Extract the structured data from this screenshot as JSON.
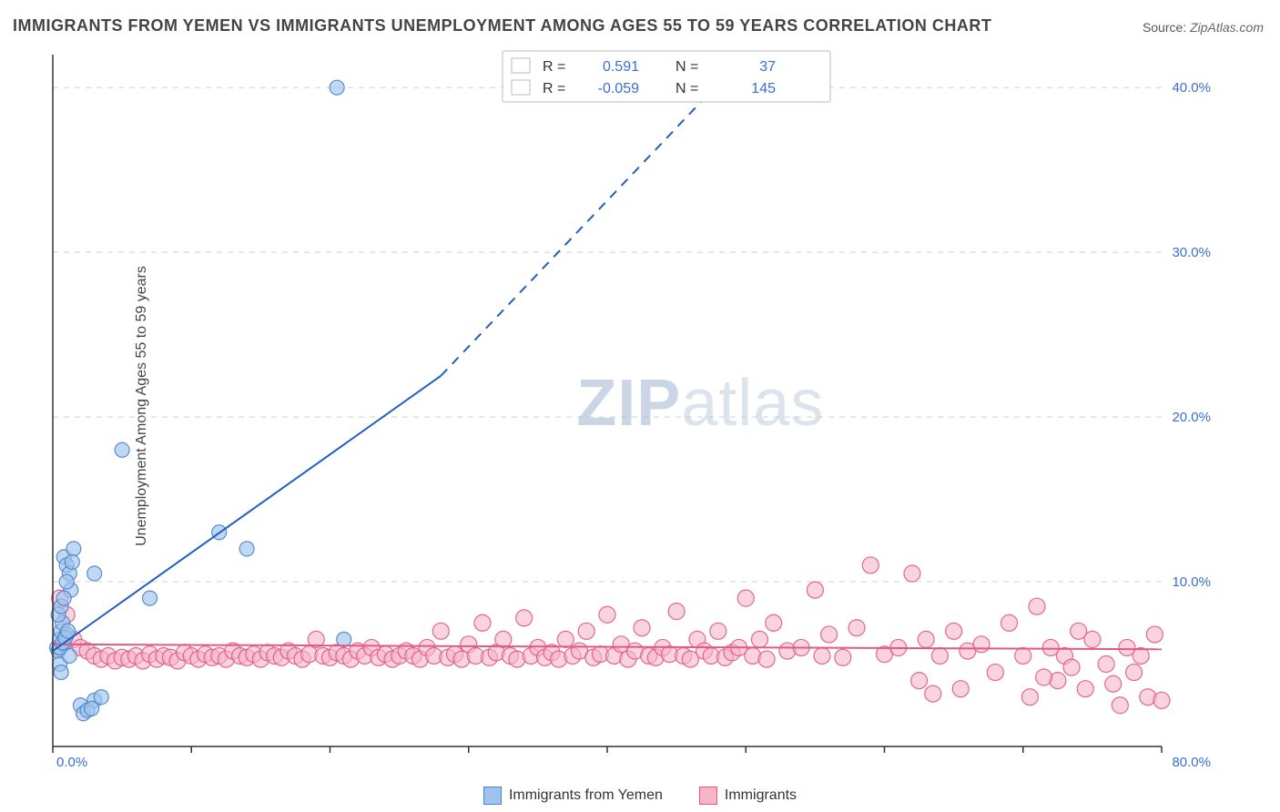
{
  "title": "IMMIGRANTS FROM YEMEN VS IMMIGRANTS UNEMPLOYMENT AMONG AGES 55 TO 59 YEARS CORRELATION CHART",
  "source": {
    "label": "Source:",
    "value": "ZipAtlas.com"
  },
  "ylabel": "Unemployment Among Ages 55 to 59 years",
  "watermark": {
    "part1": "ZIP",
    "part2": "atlas"
  },
  "chart": {
    "type": "scatter",
    "xlim": [
      0,
      80
    ],
    "ylim": [
      0,
      42
    ],
    "x_ticks": [
      0,
      10,
      20,
      30,
      40,
      50,
      60,
      70,
      80
    ],
    "y_grid": [
      10,
      20,
      30,
      40
    ],
    "y_tick_labels": [
      "10.0%",
      "20.0%",
      "30.0%",
      "40.0%"
    ],
    "x_origin_label": "0.0%",
    "x_end_label": "80.0%",
    "background_color": "#ffffff",
    "grid_color": "#d0d0d0",
    "axis_color": "#333333",
    "series": [
      {
        "name": "Immigrants from Yemen",
        "color_fill": "#9ec3ec",
        "color_stroke": "#4a83c9",
        "marker_radius": 8,
        "marker_opacity": 0.65,
        "points": [
          [
            0.3,
            6.0
          ],
          [
            0.4,
            5.8
          ],
          [
            0.5,
            6.5
          ],
          [
            0.6,
            7.0
          ],
          [
            0.7,
            7.5
          ],
          [
            0.8,
            11.5
          ],
          [
            1.0,
            11.0
          ],
          [
            1.2,
            10.5
          ],
          [
            1.3,
            9.5
          ],
          [
            1.5,
            12.0
          ],
          [
            0.5,
            5.0
          ],
          [
            0.6,
            4.5
          ],
          [
            0.8,
            6.2
          ],
          [
            1.0,
            6.8
          ],
          [
            1.2,
            5.5
          ],
          [
            0.4,
            8.0
          ],
          [
            0.6,
            8.5
          ],
          [
            0.8,
            9.0
          ],
          [
            1.0,
            10.0
          ],
          [
            2.0,
            2.5
          ],
          [
            2.2,
            2.0
          ],
          [
            2.5,
            2.2
          ],
          [
            3.0,
            2.8
          ],
          [
            3.5,
            3.0
          ],
          [
            2.8,
            2.3
          ],
          [
            3.0,
            10.5
          ],
          [
            5.0,
            18.0
          ],
          [
            7.0,
            9.0
          ],
          [
            12.0,
            13.0
          ],
          [
            14.0,
            12.0
          ],
          [
            21.0,
            6.5
          ],
          [
            20.5,
            40.0
          ],
          [
            0.5,
            6.0
          ],
          [
            0.7,
            6.3
          ],
          [
            0.9,
            6.6
          ],
          [
            1.1,
            7.0
          ],
          [
            1.4,
            11.2
          ]
        ],
        "trend": {
          "x1": 0,
          "y1": 5.8,
          "x2": 28,
          "y2": 22.5,
          "solid_until_x": 28,
          "dash_to_x": 50,
          "dash_to_y": 42,
          "color": "#1f5fc4",
          "width": 2
        }
      },
      {
        "name": "Immigrants",
        "color_fill": "#f5b6c8",
        "color_stroke": "#e05a85",
        "marker_radius": 9,
        "marker_opacity": 0.6,
        "points": [
          [
            0.5,
            9.0
          ],
          [
            1.0,
            8.0
          ],
          [
            1.5,
            6.5
          ],
          [
            2.0,
            6.0
          ],
          [
            2.5,
            5.8
          ],
          [
            3.0,
            5.5
          ],
          [
            3.5,
            5.3
          ],
          [
            4.0,
            5.5
          ],
          [
            4.5,
            5.2
          ],
          [
            5.0,
            5.4
          ],
          [
            5.5,
            5.3
          ],
          [
            6.0,
            5.5
          ],
          [
            6.5,
            5.2
          ],
          [
            7.0,
            5.6
          ],
          [
            7.5,
            5.3
          ],
          [
            8.0,
            5.5
          ],
          [
            8.5,
            5.4
          ],
          [
            9.0,
            5.2
          ],
          [
            9.5,
            5.7
          ],
          [
            10.0,
            5.5
          ],
          [
            10.5,
            5.3
          ],
          [
            11.0,
            5.6
          ],
          [
            11.5,
            5.4
          ],
          [
            12.0,
            5.5
          ],
          [
            12.5,
            5.3
          ],
          [
            13.0,
            5.8
          ],
          [
            13.5,
            5.5
          ],
          [
            14.0,
            5.4
          ],
          [
            14.5,
            5.6
          ],
          [
            15.0,
            5.3
          ],
          [
            15.5,
            5.7
          ],
          [
            16.0,
            5.5
          ],
          [
            16.5,
            5.4
          ],
          [
            17.0,
            5.8
          ],
          [
            17.5,
            5.5
          ],
          [
            18.0,
            5.3
          ],
          [
            18.5,
            5.6
          ],
          [
            19.0,
            6.5
          ],
          [
            19.5,
            5.5
          ],
          [
            20.0,
            5.4
          ],
          [
            20.5,
            5.7
          ],
          [
            21.0,
            5.5
          ],
          [
            21.5,
            5.3
          ],
          [
            22.0,
            5.8
          ],
          [
            22.5,
            5.5
          ],
          [
            23.0,
            6.0
          ],
          [
            23.5,
            5.4
          ],
          [
            24.0,
            5.6
          ],
          [
            24.5,
            5.3
          ],
          [
            25.0,
            5.5
          ],
          [
            25.5,
            5.8
          ],
          [
            26.0,
            5.5
          ],
          [
            26.5,
            5.3
          ],
          [
            27.0,
            6.0
          ],
          [
            27.5,
            5.5
          ],
          [
            28.0,
            7.0
          ],
          [
            28.5,
            5.4
          ],
          [
            29.0,
            5.6
          ],
          [
            29.5,
            5.3
          ],
          [
            30.0,
            6.2
          ],
          [
            30.5,
            5.5
          ],
          [
            31.0,
            7.5
          ],
          [
            31.5,
            5.4
          ],
          [
            32.0,
            5.7
          ],
          [
            32.5,
            6.5
          ],
          [
            33.0,
            5.5
          ],
          [
            33.5,
            5.3
          ],
          [
            34.0,
            7.8
          ],
          [
            34.5,
            5.5
          ],
          [
            35.0,
            6.0
          ],
          [
            35.5,
            5.4
          ],
          [
            36.0,
            5.7
          ],
          [
            36.5,
            5.3
          ],
          [
            37.0,
            6.5
          ],
          [
            37.5,
            5.5
          ],
          [
            38.0,
            5.8
          ],
          [
            38.5,
            7.0
          ],
          [
            39.0,
            5.4
          ],
          [
            39.5,
            5.6
          ],
          [
            40.0,
            8.0
          ],
          [
            40.5,
            5.5
          ],
          [
            41.0,
            6.2
          ],
          [
            41.5,
            5.3
          ],
          [
            42.0,
            5.8
          ],
          [
            42.5,
            7.2
          ],
          [
            43.0,
            5.5
          ],
          [
            43.5,
            5.4
          ],
          [
            44.0,
            6.0
          ],
          [
            44.5,
            5.6
          ],
          [
            45.0,
            8.2
          ],
          [
            45.5,
            5.5
          ],
          [
            46.0,
            5.3
          ],
          [
            46.5,
            6.5
          ],
          [
            47.0,
            5.8
          ],
          [
            47.5,
            5.5
          ],
          [
            48.0,
            7.0
          ],
          [
            48.5,
            5.4
          ],
          [
            49.0,
            5.7
          ],
          [
            49.5,
            6.0
          ],
          [
            50.0,
            9.0
          ],
          [
            50.5,
            5.5
          ],
          [
            51.0,
            6.5
          ],
          [
            51.5,
            5.3
          ],
          [
            52.0,
            7.5
          ],
          [
            53.0,
            5.8
          ],
          [
            54.0,
            6.0
          ],
          [
            55.0,
            9.5
          ],
          [
            55.5,
            5.5
          ],
          [
            56.0,
            6.8
          ],
          [
            57.0,
            5.4
          ],
          [
            58.0,
            7.2
          ],
          [
            59.0,
            11.0
          ],
          [
            60.0,
            5.6
          ],
          [
            61.0,
            6.0
          ],
          [
            62.0,
            10.5
          ],
          [
            62.5,
            4.0
          ],
          [
            63.0,
            6.5
          ],
          [
            64.0,
            5.5
          ],
          [
            65.0,
            7.0
          ],
          [
            65.5,
            3.5
          ],
          [
            66.0,
            5.8
          ],
          [
            67.0,
            6.2
          ],
          [
            68.0,
            4.5
          ],
          [
            69.0,
            7.5
          ],
          [
            70.0,
            5.5
          ],
          [
            70.5,
            3.0
          ],
          [
            71.0,
            8.5
          ],
          [
            72.0,
            6.0
          ],
          [
            72.5,
            4.0
          ],
          [
            73.0,
            5.5
          ],
          [
            74.0,
            7.0
          ],
          [
            74.5,
            3.5
          ],
          [
            75.0,
            6.5
          ],
          [
            76.0,
            5.0
          ],
          [
            76.5,
            3.8
          ],
          [
            77.0,
            2.5
          ],
          [
            77.5,
            6.0
          ],
          [
            78.0,
            4.5
          ],
          [
            78.5,
            5.5
          ],
          [
            79.0,
            3.0
          ],
          [
            79.5,
            6.8
          ],
          [
            80.0,
            2.8
          ],
          [
            71.5,
            4.2
          ],
          [
            73.5,
            4.8
          ],
          [
            63.5,
            3.2
          ]
        ],
        "trend": {
          "x1": 0,
          "y1": 6.2,
          "x2": 80,
          "y2": 5.9,
          "color": "#e05a85",
          "width": 2
        }
      }
    ],
    "stats": [
      {
        "swatch_fill": "#9ec3ec",
        "swatch_stroke": "#4a83c9",
        "R_label": "R =",
        "R": "0.591",
        "N_label": "N =",
        "N": "37"
      },
      {
        "swatch_fill": "#f5b6c8",
        "swatch_stroke": "#e05a85",
        "R_label": "R =",
        "R": "-0.059",
        "N_label": "N =",
        "N": "145"
      }
    ],
    "legend": [
      {
        "label": "Immigrants from Yemen",
        "fill": "#9ec3ec",
        "stroke": "#4a83c9"
      },
      {
        "label": "Immigrants",
        "fill": "#f5b6c8",
        "stroke": "#e05a85"
      }
    ]
  }
}
